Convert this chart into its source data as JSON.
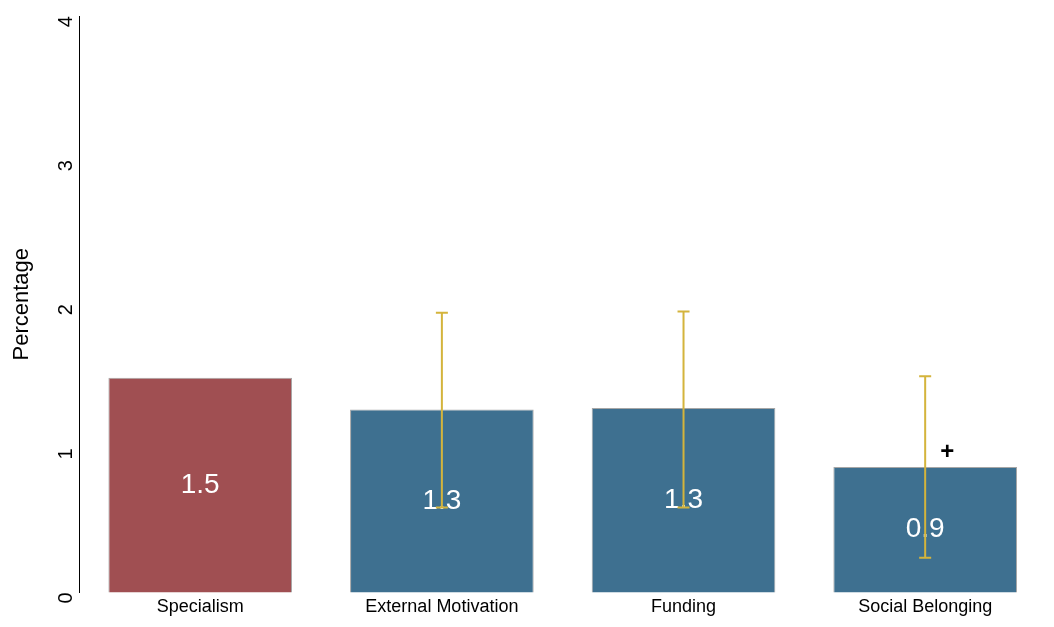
{
  "chart_data": {
    "type": "bar",
    "ylabel": "Percentage",
    "categories": [
      "Specialism",
      "External Motivation",
      "Funding",
      "Social Belonging"
    ],
    "values": [
      1.49,
      1.27,
      1.28,
      0.87
    ],
    "colors": [
      "#a04f52",
      "#3e7090",
      "#3e7090",
      "#3e7090"
    ],
    "value_labels": [
      "1.5",
      "1.3",
      "1.3",
      "0.9"
    ],
    "errors": [
      null,
      [
        0.59,
        1.94
      ],
      [
        0.59,
        1.95
      ],
      [
        0.24,
        1.5
      ]
    ],
    "ylim": [
      0,
      4
    ],
    "yticks": [
      0,
      1,
      2,
      3,
      4
    ],
    "grid": false,
    "legend": false,
    "annotations": [
      {
        "text": "+",
        "x": "Social Belonging",
        "y": 0.97
      }
    ]
  }
}
